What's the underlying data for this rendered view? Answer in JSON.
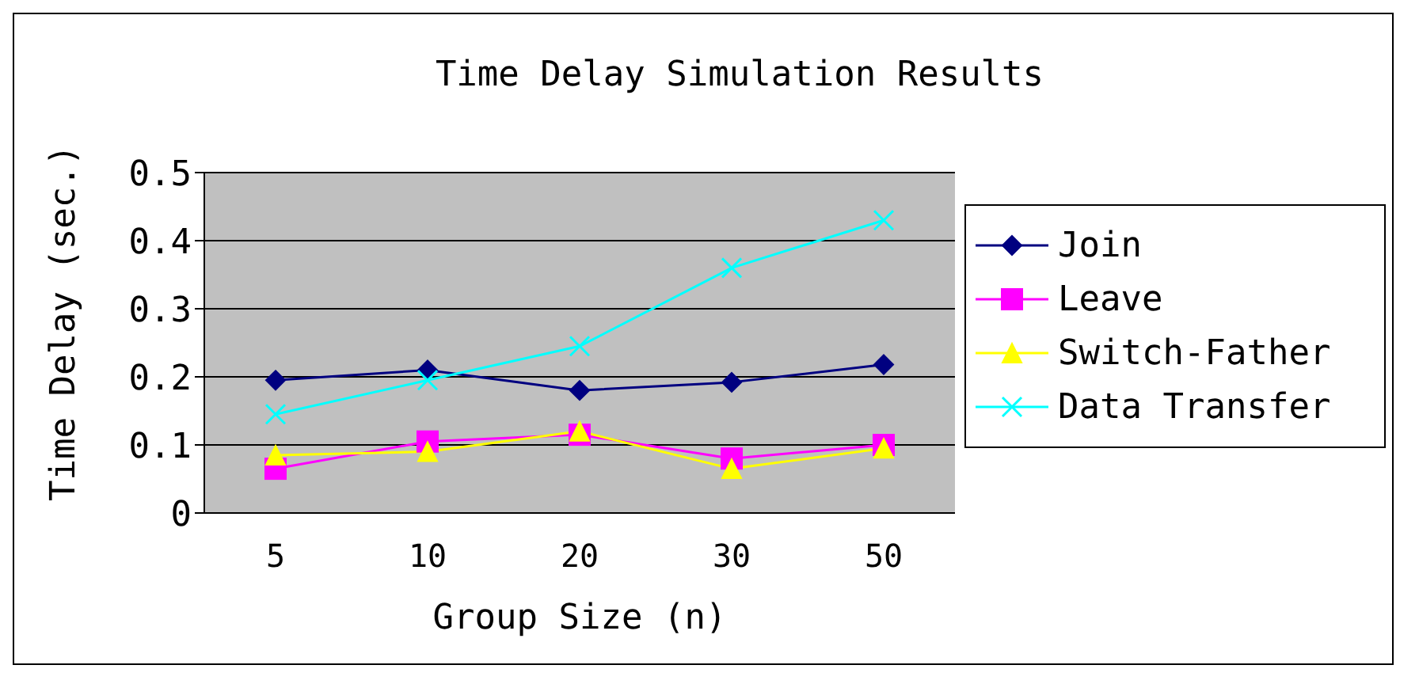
{
  "chart_data": {
    "type": "line",
    "title": "Time Delay Simulation Results",
    "xlabel": "Group Size (n)",
    "ylabel": "Time Delay (sec.)",
    "categories": [
      "5",
      "10",
      "20",
      "30",
      "50"
    ],
    "series": [
      {
        "name": "Join",
        "color": "#000080",
        "marker": "diamond",
        "values": [
          0.195,
          0.21,
          0.18,
          0.192,
          0.218
        ]
      },
      {
        "name": "Leave",
        "color": "#ff00ff",
        "marker": "square",
        "values": [
          0.065,
          0.105,
          0.115,
          0.08,
          0.1
        ]
      },
      {
        "name": "Switch-Father",
        "color": "#ffff00",
        "marker": "triangle",
        "values": [
          0.085,
          0.09,
          0.12,
          0.065,
          0.095
        ]
      },
      {
        "name": "Data Transfer",
        "color": "#00ffff",
        "marker": "cross",
        "values": [
          0.145,
          0.195,
          0.245,
          0.36,
          0.43
        ]
      }
    ],
    "ylim": [
      0,
      0.5
    ],
    "yticks": [
      0,
      0.1,
      0.2,
      0.3,
      0.4,
      0.5
    ],
    "grid": "y",
    "legend": "right",
    "line_style": "solid"
  }
}
